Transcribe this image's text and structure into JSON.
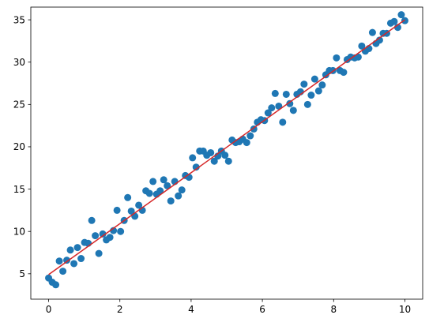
{
  "chart_data": {
    "type": "scatter",
    "title": "",
    "xlabel": "",
    "ylabel": "",
    "xlim": [
      -0.5,
      10.5
    ],
    "ylim": [
      2.0,
      36.5
    ],
    "xticks": [
      0,
      2,
      4,
      6,
      8,
      10
    ],
    "yticks": [
      5,
      10,
      15,
      20,
      25,
      30,
      35
    ],
    "xtick_labels": [
      "0",
      "2",
      "4",
      "6",
      "8",
      "10"
    ],
    "ytick_labels": [
      "5",
      "10",
      "15",
      "20",
      "25",
      "30",
      "35"
    ],
    "grid": false,
    "legend": "none",
    "series": [
      {
        "kind": "scatter",
        "color": "#1f77b4",
        "points": [
          [
            0.0,
            4.5
          ],
          [
            0.1,
            4.0
          ],
          [
            0.2,
            3.7
          ],
          [
            0.3,
            6.5
          ],
          [
            0.4,
            5.3
          ],
          [
            0.51,
            6.6
          ],
          [
            0.61,
            7.8
          ],
          [
            0.71,
            6.2
          ],
          [
            0.81,
            8.1
          ],
          [
            0.91,
            6.8
          ],
          [
            1.01,
            8.7
          ],
          [
            1.11,
            8.6
          ],
          [
            1.21,
            11.3
          ],
          [
            1.31,
            9.5
          ],
          [
            1.41,
            7.4
          ],
          [
            1.52,
            9.7
          ],
          [
            1.62,
            9.0
          ],
          [
            1.72,
            9.3
          ],
          [
            1.82,
            10.1
          ],
          [
            1.92,
            12.5
          ],
          [
            2.02,
            10.0
          ],
          [
            2.12,
            11.3
          ],
          [
            2.22,
            14.0
          ],
          [
            2.32,
            12.4
          ],
          [
            2.42,
            11.8
          ],
          [
            2.53,
            13.1
          ],
          [
            2.63,
            12.5
          ],
          [
            2.73,
            14.8
          ],
          [
            2.83,
            14.5
          ],
          [
            2.93,
            15.9
          ],
          [
            3.03,
            14.4
          ],
          [
            3.13,
            14.8
          ],
          [
            3.23,
            16.1
          ],
          [
            3.33,
            15.4
          ],
          [
            3.43,
            13.6
          ],
          [
            3.54,
            15.9
          ],
          [
            3.64,
            14.2
          ],
          [
            3.74,
            14.9
          ],
          [
            3.84,
            16.6
          ],
          [
            3.94,
            16.4
          ],
          [
            4.04,
            18.7
          ],
          [
            4.14,
            17.6
          ],
          [
            4.24,
            19.5
          ],
          [
            4.34,
            19.5
          ],
          [
            4.44,
            19.0
          ],
          [
            4.55,
            19.3
          ],
          [
            4.65,
            18.3
          ],
          [
            4.75,
            18.9
          ],
          [
            4.85,
            19.5
          ],
          [
            4.95,
            19.0
          ],
          [
            5.05,
            18.3
          ],
          [
            5.15,
            20.8
          ],
          [
            5.25,
            20.5
          ],
          [
            5.35,
            20.6
          ],
          [
            5.45,
            20.9
          ],
          [
            5.56,
            20.5
          ],
          [
            5.66,
            21.3
          ],
          [
            5.76,
            22.1
          ],
          [
            5.86,
            22.9
          ],
          [
            5.96,
            23.2
          ],
          [
            6.06,
            23.1
          ],
          [
            6.16,
            24.0
          ],
          [
            6.26,
            24.6
          ],
          [
            6.36,
            26.3
          ],
          [
            6.46,
            24.8
          ],
          [
            6.57,
            22.9
          ],
          [
            6.67,
            26.2
          ],
          [
            6.77,
            25.1
          ],
          [
            6.87,
            24.3
          ],
          [
            6.97,
            26.2
          ],
          [
            7.07,
            26.5
          ],
          [
            7.17,
            27.4
          ],
          [
            7.27,
            25.0
          ],
          [
            7.37,
            26.1
          ],
          [
            7.47,
            28.0
          ],
          [
            7.58,
            26.6
          ],
          [
            7.68,
            27.3
          ],
          [
            7.78,
            28.5
          ],
          [
            7.88,
            29.0
          ],
          [
            7.98,
            29.0
          ],
          [
            8.08,
            30.5
          ],
          [
            8.18,
            29.0
          ],
          [
            8.28,
            28.8
          ],
          [
            8.38,
            30.3
          ],
          [
            8.48,
            30.6
          ],
          [
            8.59,
            30.5
          ],
          [
            8.69,
            30.6
          ],
          [
            8.79,
            31.9
          ],
          [
            8.89,
            31.3
          ],
          [
            8.99,
            31.6
          ],
          [
            9.09,
            33.5
          ],
          [
            9.19,
            32.2
          ],
          [
            9.29,
            32.6
          ],
          [
            9.39,
            33.4
          ],
          [
            9.49,
            33.4
          ],
          [
            9.6,
            34.6
          ],
          [
            9.7,
            34.8
          ],
          [
            9.8,
            34.1
          ],
          [
            9.9,
            35.6
          ],
          [
            10.0,
            34.9
          ]
        ]
      },
      {
        "kind": "line",
        "color": "#d62728",
        "x": [
          0,
          10
        ],
        "y": [
          4.9,
          35.0
        ]
      }
    ]
  }
}
